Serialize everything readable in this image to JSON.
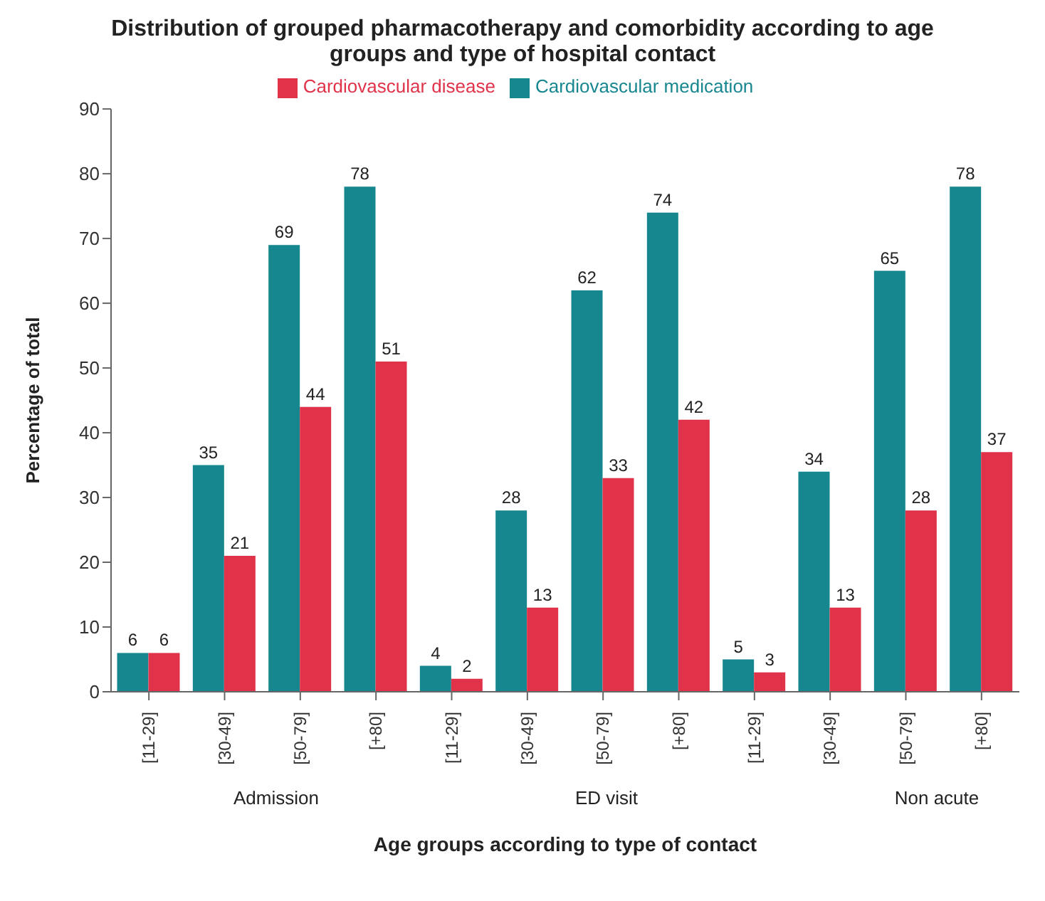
{
  "chart_data": {
    "type": "bar",
    "title": "Distribution of grouped pharmacotherapy and comorbidity according to age groups and type of hospital contact",
    "xlabel": "Age groups according to type of contact",
    "ylabel": "Percentage of total",
    "categories": [
      "[11-29]",
      "[30-49]",
      "[50-79]",
      "[+80]",
      "[11-29]",
      "[30-49]",
      "[50-79]",
      "[+80]",
      "[11-29]",
      "[30-49]",
      "[50-79]",
      "[+80]"
    ],
    "series": [
      {
        "name": "Cardiovascular medication",
        "color": "#17878f",
        "values": [
          6,
          35,
          69,
          78,
          4,
          28,
          62,
          74,
          5,
          34,
          65,
          78
        ]
      },
      {
        "name": "Cardiovascular disease",
        "color": "#e0334a",
        "values": [
          6,
          21,
          44,
          51,
          2,
          13,
          33,
          42,
          3,
          13,
          28,
          37
        ]
      }
    ],
    "ylim": [
      0,
      90
    ],
    "yticks": [
      0,
      10,
      20,
      30,
      40,
      50,
      60,
      70,
      80,
      90
    ],
    "data_labels": true,
    "legend": "top",
    "grid": false,
    "annotations": [
      "Admission",
      "ED visit",
      "Non acute"
    ]
  }
}
